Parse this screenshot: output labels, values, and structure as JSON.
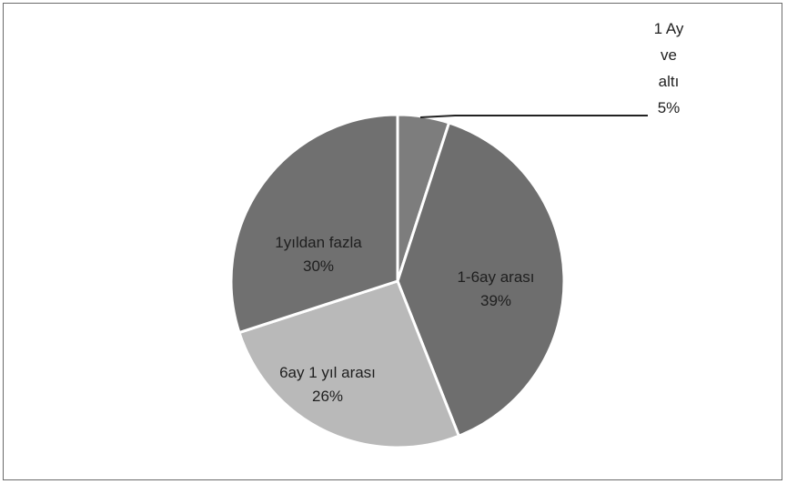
{
  "chart_data": {
    "type": "pie",
    "categories": [
      "1 Ay ve altı",
      "1-6ay arası",
      "6ay 1 yıl arası",
      "1yıldan fazla"
    ],
    "values": [
      5,
      39,
      26,
      30
    ],
    "labels": [
      {
        "name_lines": [
          "1 Ay",
          "ve",
          "altı"
        ],
        "percent": "5%"
      },
      {
        "name_lines": [
          "1-6ay arası"
        ],
        "percent": "39%"
      },
      {
        "name_lines": [
          "6ay 1 yıl arası"
        ],
        "percent": "26%"
      },
      {
        "name_lines": [
          "1yıldan fazla"
        ],
        "percent": "30%"
      }
    ],
    "colors": [
      "#7d7d7d",
      "#6e6e6e",
      "#b9b9b9",
      "#707070"
    ],
    "start_angle_deg": 0,
    "direction": "clockwise",
    "legend": "none",
    "title": ""
  }
}
